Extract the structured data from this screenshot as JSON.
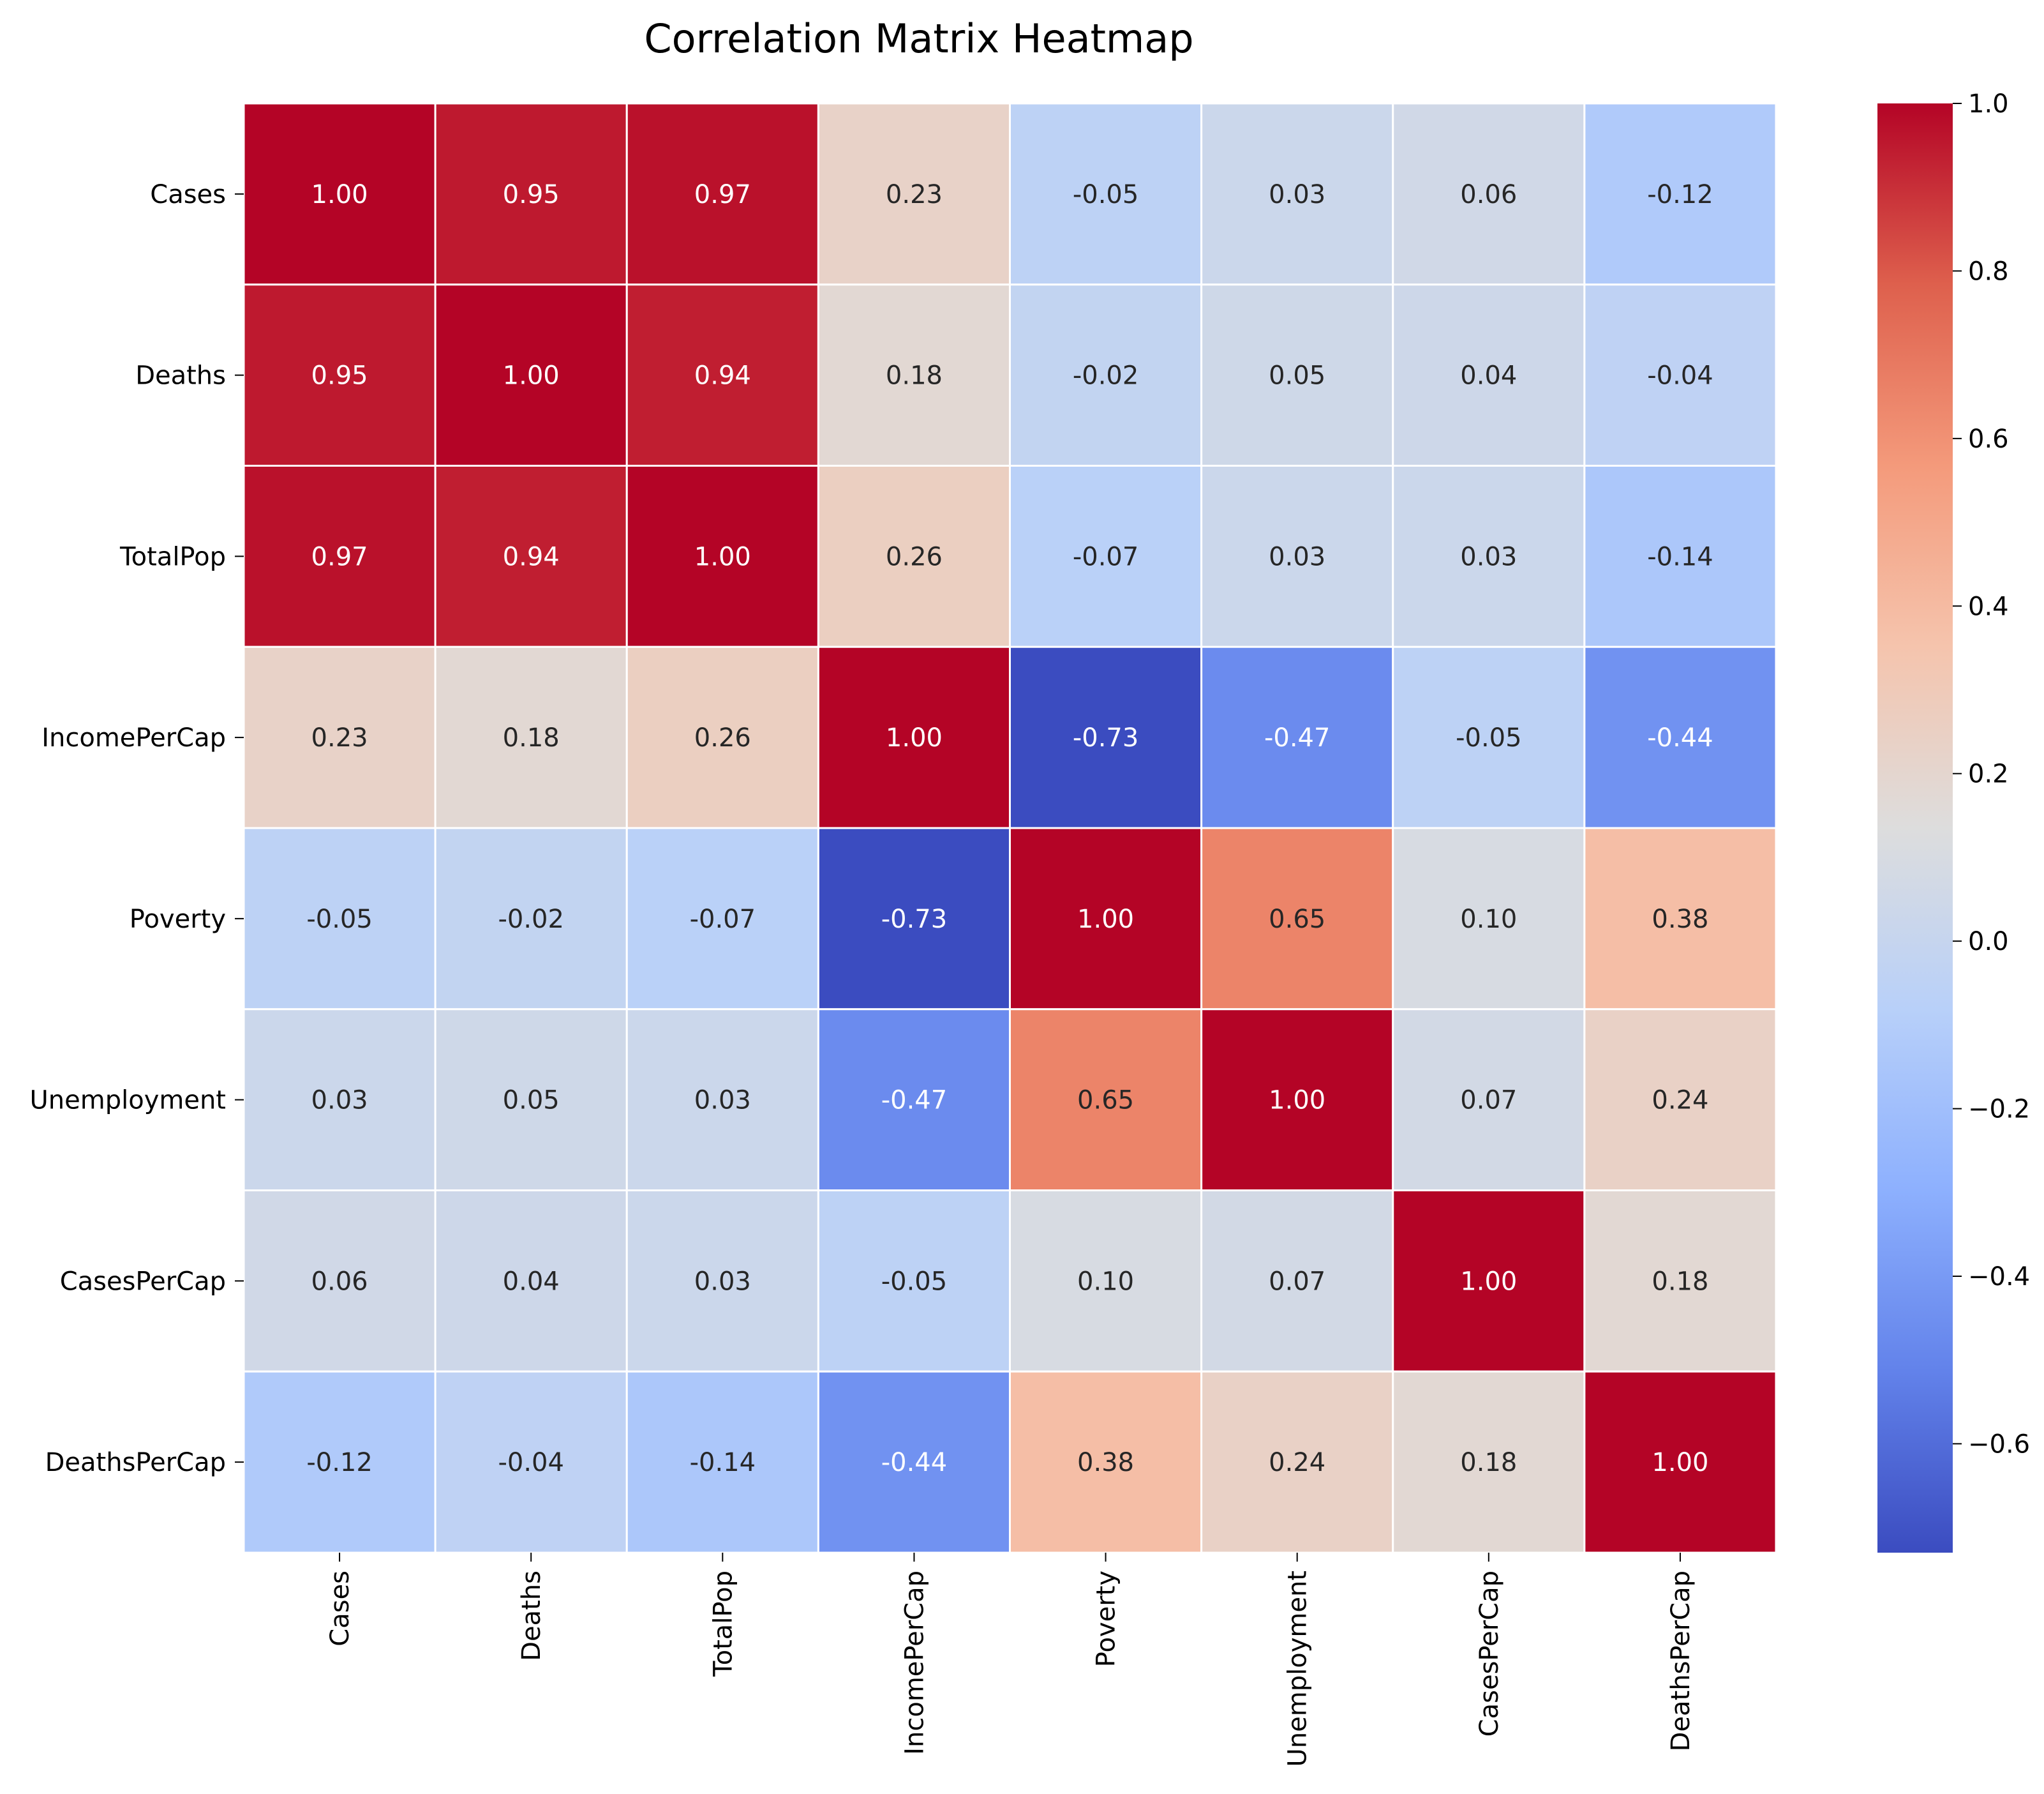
{
  "chart_data": {
    "type": "heatmap",
    "title": "Correlation Matrix Heatmap",
    "xlabel": "",
    "ylabel": "",
    "rows": [
      "Cases",
      "Deaths",
      "TotalPop",
      "IncomePerCap",
      "Poverty",
      "Unemployment",
      "CasesPerCap",
      "DeathsPerCap"
    ],
    "columns": [
      "Cases",
      "Deaths",
      "TotalPop",
      "IncomePerCap",
      "Poverty",
      "Unemployment",
      "CasesPerCap",
      "DeathsPerCap"
    ],
    "values": [
      [
        1.0,
        0.95,
        0.97,
        0.23,
        -0.05,
        0.03,
        0.06,
        -0.12
      ],
      [
        0.95,
        1.0,
        0.94,
        0.18,
        -0.02,
        0.05,
        0.04,
        -0.04
      ],
      [
        0.97,
        0.94,
        1.0,
        0.26,
        -0.07,
        0.03,
        0.03,
        -0.14
      ],
      [
        0.23,
        0.18,
        0.26,
        1.0,
        -0.73,
        -0.47,
        -0.05,
        -0.44
      ],
      [
        -0.05,
        -0.02,
        -0.07,
        -0.73,
        1.0,
        0.65,
        0.1,
        0.38
      ],
      [
        0.03,
        0.05,
        0.03,
        -0.47,
        0.65,
        1.0,
        0.07,
        0.24
      ],
      [
        0.06,
        0.04,
        0.03,
        -0.05,
        0.1,
        0.07,
        1.0,
        0.18
      ],
      [
        -0.12,
        -0.04,
        -0.14,
        -0.44,
        0.38,
        0.24,
        0.18,
        1.0
      ]
    ],
    "colormap": "coolwarm",
    "vmin": -0.73,
    "vmax": 1.0,
    "colorbar_ticks": [
      "−0.6",
      "−0.4",
      "−0.2",
      "0.0",
      "0.2",
      "0.4",
      "0.6",
      "0.8",
      "1.0"
    ],
    "colorbar_tick_values": [
      -0.6,
      -0.4,
      -0.2,
      0.0,
      0.2,
      0.4,
      0.6,
      0.8,
      1.0
    ],
    "annotation_format": "2 decimals",
    "grid": false,
    "legend": "colorbar right"
  }
}
